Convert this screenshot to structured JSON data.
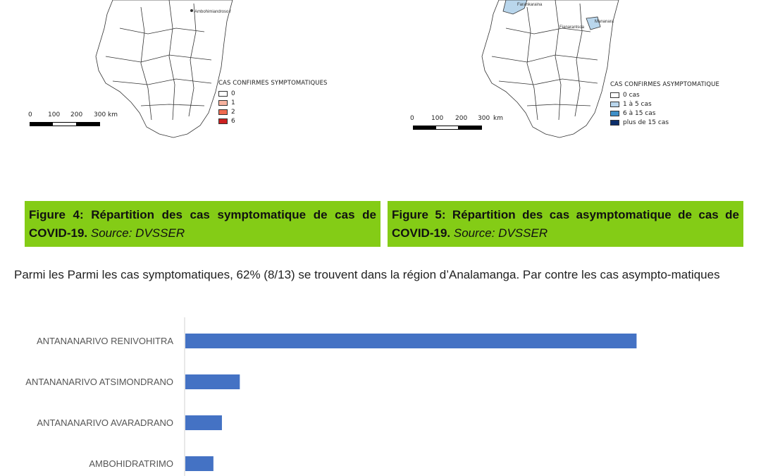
{
  "map_left": {
    "city_label": "Ambohimiandroso I",
    "legend_title": "CAS CONFIRMES SYMPTOMATIQUES",
    "legend_items": [
      {
        "label": "0",
        "color": "#ffffff"
      },
      {
        "label": "1",
        "color": "#f7b3a0"
      },
      {
        "label": "2",
        "color": "#ef6b50"
      },
      {
        "label": "6",
        "color": "#cc2020"
      }
    ],
    "scale_labels": [
      "0",
      "100",
      "200",
      "300",
      "km"
    ]
  },
  "map_right": {
    "city_labels": [
      "Farankaraina",
      "Fianarantsoa",
      "Mananara"
    ],
    "legend_title": "CAS CONFIRMES ASYMPTOMATIQUE",
    "legend_items": [
      {
        "label": "0 cas",
        "color": "#ffffff"
      },
      {
        "label": "1 à 5 cas",
        "color": "#b9d6ec"
      },
      {
        "label": "6 à 15 cas",
        "color": "#3f8fc7"
      },
      {
        "label": "plus de 15 cas",
        "color": "#0b2e6b"
      }
    ],
    "scale_labels": [
      "0",
      "100",
      "200",
      "300",
      "km"
    ]
  },
  "captions": {
    "left": {
      "bold": "Figure 4: Répartition des cas symptomatique de cas de COVID-19.",
      "source": "Source: DVSSER"
    },
    "right": {
      "bold": "Figure 5: Répartition des cas asymptomatique de cas de COVID-19.",
      "source": "Source: DVSSER"
    }
  },
  "paragraph": "Parmi les Parmi les cas symptomatiques, 62% (8/13) se trouvent dans la région d’Analamanga. Par contre les cas asympto-matiques",
  "colors": {
    "caption_bg": "#84cc16",
    "bar": "#4472c4"
  },
  "chart_data": {
    "type": "bar",
    "orientation": "horizontal",
    "categories": [
      "ANTANANARIVO RENIVOHITRA",
      "ANTANANARIVO ATSIMONDRANO",
      "ANTANANARIVO AVARADRANO",
      "AMBOHIDRATRIMO"
    ],
    "values": [
      53,
      6.4,
      4.3,
      3.3
    ],
    "xlim": [
      0,
      60
    ],
    "title": "",
    "xlabel": "",
    "ylabel": ""
  }
}
